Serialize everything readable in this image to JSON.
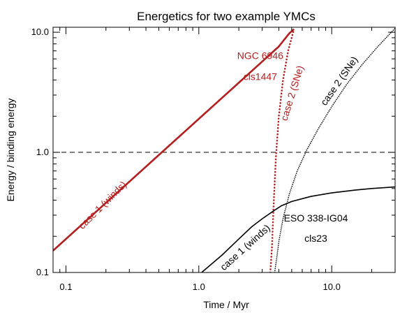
{
  "chart_data": {
    "type": "line",
    "title": "Energetics for two example YMCs",
    "xlabel": "Time / Myr",
    "ylabel": "Energy / binding energy",
    "xscale": "log",
    "yscale": "log",
    "xlim": [
      0.08,
      30
    ],
    "ylim": [
      0.1,
      11
    ],
    "xticks": [
      {
        "value": 0.1,
        "label": "0.1"
      },
      {
        "value": 1,
        "label": "1.0"
      },
      {
        "value": 10,
        "label": "10.0"
      }
    ],
    "yticks": [
      {
        "value": 0.1,
        "label": "0.1"
      },
      {
        "value": 1,
        "label": "1.0"
      },
      {
        "value": 10,
        "label": "10.0"
      }
    ],
    "reference_line": {
      "y": 1.0,
      "style": "dashed",
      "color": "#000000"
    },
    "colors": {
      "red": "#b41e1e",
      "black": "#000000"
    },
    "series": [
      {
        "key": "ngc-winds",
        "color": "#b41e1e",
        "style": "solid",
        "width": 2.6,
        "x": [
          0.08,
          0.2,
          0.5,
          1.0,
          2.0,
          3.0,
          3.6,
          4.0,
          4.4,
          4.8,
          5.2
        ],
        "y": [
          0.152,
          0.38,
          0.95,
          1.9,
          3.8,
          5.7,
          6.85,
          7.6,
          8.7,
          9.8,
          10.6
        ]
      },
      {
        "key": "ngc-sne",
        "color": "#b41e1e",
        "style": "dotted",
        "width": 2.6,
        "x": [
          3.45,
          3.55,
          3.65,
          3.8,
          4.0,
          4.3,
          4.7,
          5.2
        ],
        "y": [
          0.1,
          0.16,
          0.35,
          0.9,
          2.0,
          4.0,
          7.0,
          10.6
        ]
      },
      {
        "key": "eso-winds",
        "color": "#000000",
        "style": "solid",
        "width": 1.6,
        "x": [
          1.05,
          1.5,
          2.0,
          2.5,
          3.0,
          3.5,
          3.8,
          4.2,
          5.0,
          7.0,
          10.0,
          15.0,
          20.0,
          30.0
        ],
        "y": [
          0.1,
          0.14,
          0.19,
          0.24,
          0.28,
          0.315,
          0.335,
          0.36,
          0.39,
          0.43,
          0.46,
          0.485,
          0.5,
          0.515
        ]
      },
      {
        "key": "eso-sne",
        "color": "#000000",
        "style": "dotted",
        "width": 1.6,
        "x": [
          3.72,
          3.85,
          4.0,
          4.3,
          4.8,
          5.5,
          6.5,
          8.0,
          10.0,
          13.0,
          17.0,
          22.0,
          30.0
        ],
        "y": [
          0.1,
          0.13,
          0.18,
          0.28,
          0.45,
          0.7,
          1.05,
          1.6,
          2.4,
          3.7,
          5.4,
          7.5,
          10.8
        ]
      }
    ],
    "annotations": [
      {
        "key": "ngc-name",
        "text": "NGC 6946",
        "color": "#b41e1e",
        "x": 2.9,
        "y": 6.3,
        "rotate": 0
      },
      {
        "key": "ngc-id",
        "text": "cls1447",
        "color": "#b41e1e",
        "x": 2.9,
        "y": 4.2,
        "rotate": 0
      },
      {
        "key": "ngc-case1",
        "text": "case 1 (winds)",
        "color": "#b41e1e",
        "x": 0.19,
        "y": 0.36,
        "rotate": -45
      },
      {
        "key": "ngc-case2",
        "text": "case 2 (SNe)",
        "color": "#b41e1e",
        "x": 5.1,
        "y": 3.1,
        "rotate": -73
      },
      {
        "key": "eso-name",
        "text": "ESO 338-IG04",
        "color": "#000000",
        "x": 7.6,
        "y": 0.28,
        "rotate": 0
      },
      {
        "key": "eso-id",
        "text": "cls23",
        "color": "#000000",
        "x": 7.6,
        "y": 0.19,
        "rotate": 0
      },
      {
        "key": "eso-case1",
        "text": "case 1 (winds)",
        "color": "#000000",
        "x": 2.25,
        "y": 0.16,
        "rotate": -42
      },
      {
        "key": "eso-case2",
        "text": "case 2 (SNe)",
        "color": "#000000",
        "x": 11.5,
        "y": 3.9,
        "rotate": -55
      }
    ]
  }
}
